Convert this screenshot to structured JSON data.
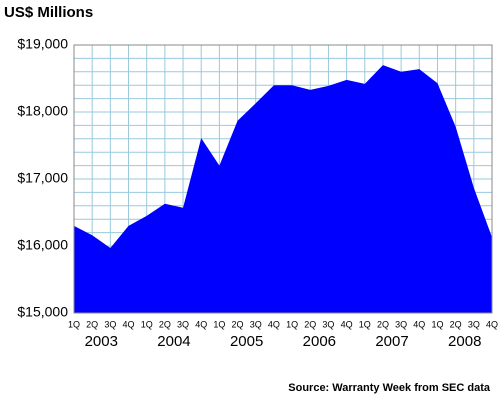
{
  "chart_data": {
    "type": "area",
    "title": "US$ Millions",
    "source": "Source: Warranty Week from SEC data",
    "categories": [
      "1Q",
      "2Q",
      "3Q",
      "4Q",
      "1Q",
      "2Q",
      "3Q",
      "4Q",
      "1Q",
      "2Q",
      "3Q",
      "4Q",
      "1Q",
      "2Q",
      "3Q",
      "4Q",
      "1Q",
      "2Q",
      "3Q",
      "4Q",
      "1Q",
      "2Q",
      "3Q",
      "4Q"
    ],
    "years": [
      "2003",
      "2004",
      "2005",
      "2006",
      "2007",
      "2008"
    ],
    "values": [
      16300,
      16160,
      15970,
      16300,
      16450,
      16630,
      16570,
      17610,
      17200,
      17870,
      18130,
      18400,
      18400,
      18330,
      18390,
      18480,
      18420,
      18700,
      18600,
      18640,
      18430,
      17780,
      16870,
      16130
    ],
    "color": "#0000ff",
    "grid_color": "#99c9dd",
    "ylim": [
      15000,
      19000
    ],
    "yticks": [
      {
        "value": 15000,
        "label": "$15,000"
      },
      {
        "value": 16000,
        "label": "$16,000"
      },
      {
        "value": 17000,
        "label": "$17,000"
      },
      {
        "value": 18000,
        "label": "$18,000"
      },
      {
        "value": 19000,
        "label": "$19,000"
      }
    ],
    "grid": true
  }
}
